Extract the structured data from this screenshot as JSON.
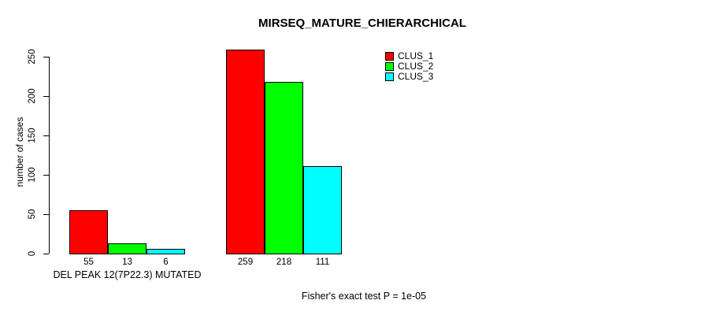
{
  "chart_data": {
    "type": "bar",
    "title": "MIRSEQ_MATURE_CHIERARCHICAL",
    "xlabel": "",
    "ylabel": "number of cases",
    "ylim": [
      0,
      250
    ],
    "yticks": [
      0,
      50,
      100,
      150,
      200,
      250
    ],
    "grid": false,
    "legend_position": "top-right-inside",
    "groups": [
      {
        "label": "DEL PEAK 12(7P22.3) MUTATED"
      },
      {
        "label": ""
      }
    ],
    "series": [
      {
        "name": "CLUS_1",
        "color": "#FF0000",
        "values": [
          55,
          259
        ]
      },
      {
        "name": "CLUS_2",
        "color": "#00FF00",
        "values": [
          13,
          218
        ]
      },
      {
        "name": "CLUS_3",
        "color": "#00FFFF",
        "values": [
          6,
          111
        ]
      }
    ],
    "bar_value_labels_shown": true,
    "annotation": "Fisher's exact test P = 1e-05"
  },
  "colors": {
    "background": "#FFFFFF",
    "axis": "#000000",
    "text": "#000000",
    "clus_1": "#FF0000",
    "clus_2": "#00FF00",
    "clus_3": "#00FFFF"
  }
}
